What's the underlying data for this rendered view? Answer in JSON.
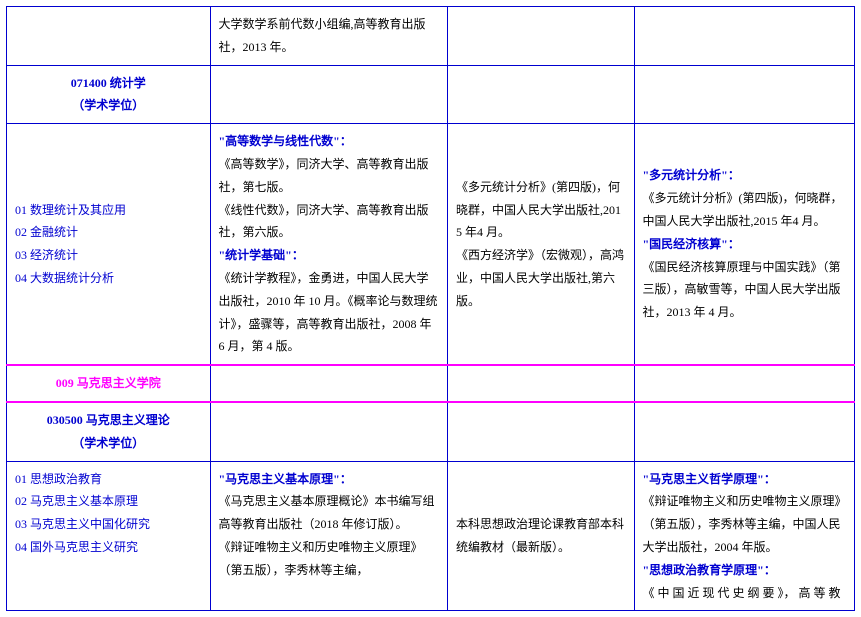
{
  "colors": {
    "border": "#0000d0",
    "headerBlue": "#0000d0",
    "magenta": "#ff00ff",
    "text": "#000000",
    "background": "#ffffff"
  },
  "layout": {
    "columns": 4,
    "columnWidths": [
      "24%",
      "28%",
      "22%",
      "26%"
    ],
    "fontSizePx": 12,
    "lineHeight": 1.9
  },
  "rows": [
    {
      "type": "data",
      "cells": {
        "c1": "",
        "c2": "大学数学系前代数小组编,高等教育出版社，2013 年。",
        "c3": "",
        "c4": ""
      }
    },
    {
      "type": "program-header",
      "title_line1": "071400 统计学",
      "title_line2": "（学术学位）"
    },
    {
      "type": "data",
      "directions": [
        "01 数理统计及其应用",
        "02 金融统计",
        "03 经济统计",
        "04 大数据统计分析"
      ],
      "col2": {
        "sections": [
          {
            "heading": "\"高等数学与线性代数\"：",
            "body": "《高等数学》，同济大学、高等教育出版社，第七版。\n《线性代数》，同济大学、高等教育出版社，第六版。"
          },
          {
            "heading": "\"统计学基础\"：",
            "body": "《统计学教程》，金勇进，中国人民大学出版社，2010 年 10 月。《概率论与数理统计》，盛骤等，高等教育出版社，2008 年 6 月，第 4 版。"
          }
        ]
      },
      "col3": {
        "body": "《多元统计分析》(第四版)，何晓群，中国人民大学出版社,2015 年4 月。\n《西方经济学》（宏微观），高鸿业，中国人民大学出版社,第六版。"
      },
      "col4": {
        "sections": [
          {
            "heading": "\"多元统计分析\"：",
            "body": "《多元统计分析》(第四版)，何晓群，中国人民大学出版社,2015 年4 月。"
          },
          {
            "heading": "\"国民经济核算\"：",
            "body": "《国民经济核算原理与中国实践》（第三版），高敏雪等，中国人民大学出版社，2013 年 4 月。"
          }
        ]
      }
    },
    {
      "type": "school-header",
      "title": "009 马克思主义学院"
    },
    {
      "type": "program-header",
      "title_line1": "030500 马克思主义理论",
      "title_line2": "（学术学位）"
    },
    {
      "type": "data",
      "directions": [
        "01 思想政治教育",
        "02 马克思主义基本原理",
        "03 马克思主义中国化研究",
        "04 国外马克思主义研究"
      ],
      "col2": {
        "sections": [
          {
            "heading": "\"马克思主义基本原理\"：",
            "body": "《马克思主义基本原理概论》本书编写组 高等教育出版社（2018 年修订版）。\n《辩证唯物主义和历史唯物主义原理》（第五版），李秀林等主编，"
          }
        ]
      },
      "col3": {
        "body": "本科思想政治理论课教育部本科统编教材（最新版）。"
      },
      "col4": {
        "sections": [
          {
            "heading": "\"马克思主义哲学原理\"：",
            "body": "《辩证唯物主义和历史唯物主义原理》（第五版），李秀林等主编，中国人民大学出版社，2004 年版。"
          },
          {
            "heading": "\"思想政治教育学原理\"：",
            "body": "《 中 国 近 现 代 史 纲 要 》， 高 等 教"
          }
        ]
      }
    }
  ]
}
